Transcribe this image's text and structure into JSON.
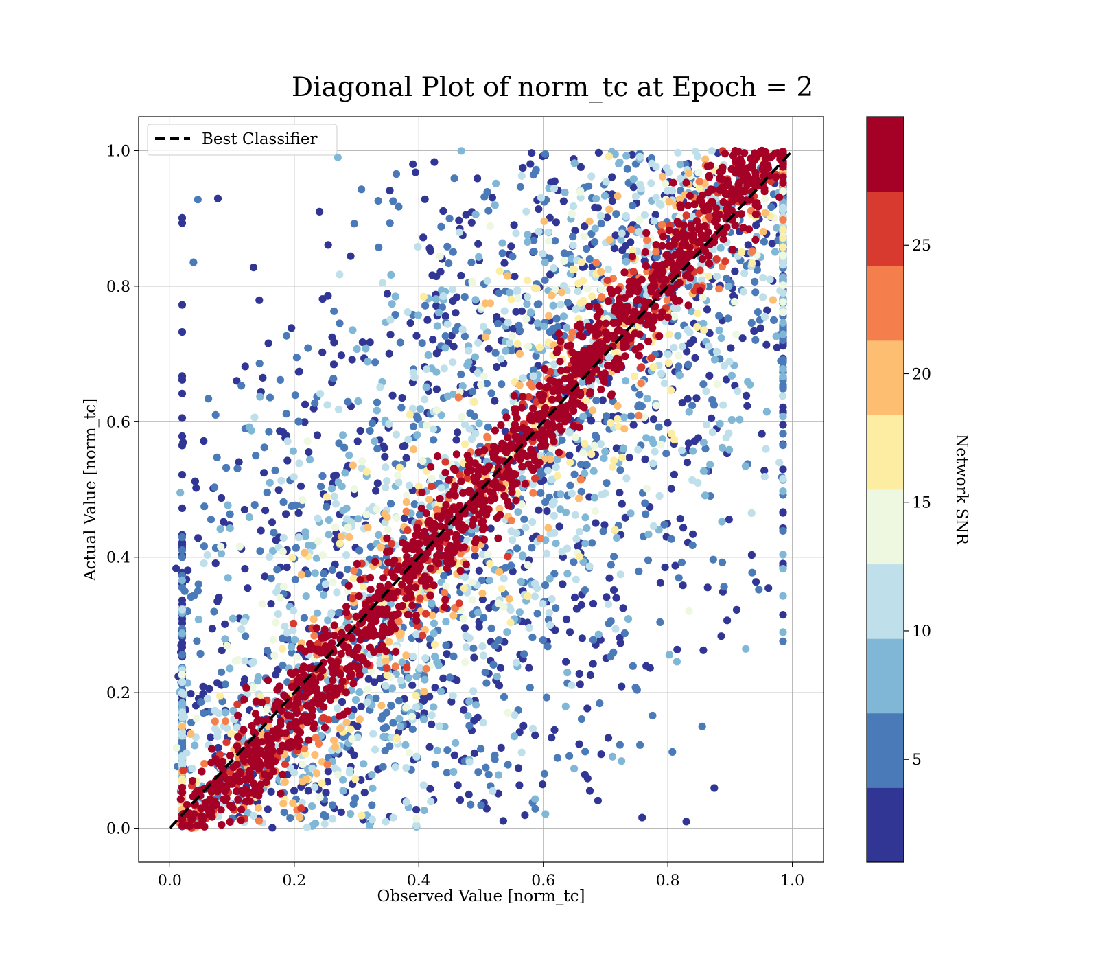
{
  "chart_data": {
    "type": "scatter",
    "title": "Diagonal Plot of norm_tc at Epoch = 2",
    "xlabel": "Observed Value [norm_tc]",
    "ylabel": "Actual Value [norm_tc]",
    "xlim": [
      -0.05,
      1.05
    ],
    "ylim": [
      -0.05,
      1.05
    ],
    "x_ticks": [
      "0.0",
      "0.2",
      "0.4",
      "0.6",
      "0.8",
      "1.0"
    ],
    "y_ticks": [
      "0.0",
      "0.2",
      "0.4",
      "0.6",
      "0.8",
      "1.0"
    ],
    "grid": true,
    "legend": {
      "placement": "top-left",
      "entries": [
        {
          "label": "Best Classifier",
          "style": "dashed",
          "color": "#000000"
        }
      ]
    },
    "reference_line": {
      "label": "Best Classifier",
      "x": [
        0,
        1
      ],
      "y": [
        0,
        1
      ]
    },
    "colorbar": {
      "label": "Network SNR",
      "range": [
        1,
        30
      ],
      "ticks": [
        "5",
        "10",
        "15",
        "20",
        "25"
      ],
      "tick_values": [
        5,
        10,
        15,
        20,
        25
      ],
      "colors": [
        "#313695",
        "#4575b4",
        "#74add1",
        "#abd9e9",
        "#e0f3f8",
        "#fee090",
        "#fdae61",
        "#f46d43",
        "#d73027",
        "#a50026"
      ],
      "display_colors": [
        "#313695",
        "#4a7ab7",
        "#80b7d6",
        "#bfe0ea",
        "#eef7e0",
        "#fdeda3",
        "#fdbe72",
        "#f47f4d",
        "#d93a2f",
        "#a50026"
      ]
    },
    "description_of_data": "Dense band of high-SNR points (red) along the y = x diagonal; lower-SNR points (blue) scattered widely above the diagonal for small x-offsets and below it toward the bottom-right, clipped to 0 <= y <= 1.",
    "series": [
      {
        "name": "",
        "snr_band": "high (>27)",
        "color": "#a50026",
        "approx_points": [
          [
            0.05,
            0.02
          ],
          [
            0.1,
            0.1
          ],
          [
            0.2,
            0.18
          ],
          [
            0.3,
            0.32
          ],
          [
            0.4,
            0.4
          ],
          [
            0.5,
            0.5
          ],
          [
            0.6,
            0.58
          ],
          [
            0.7,
            0.71
          ],
          [
            0.8,
            0.8
          ],
          [
            0.9,
            0.92
          ],
          [
            0.95,
            0.98
          ]
        ]
      },
      {
        "name": "",
        "snr_band": "low (<10)",
        "color": "#4575b4",
        "approx_points": [
          [
            0.45,
            0.95
          ],
          [
            0.5,
            0.85
          ],
          [
            0.55,
            0.9
          ],
          [
            0.45,
            0.7
          ],
          [
            0.4,
            0.6
          ],
          [
            0.5,
            0.15
          ],
          [
            0.55,
            0.1
          ],
          [
            0.6,
            0.2
          ],
          [
            0.45,
            0.05
          ],
          [
            0.65,
            0.3
          ]
        ]
      }
    ]
  }
}
